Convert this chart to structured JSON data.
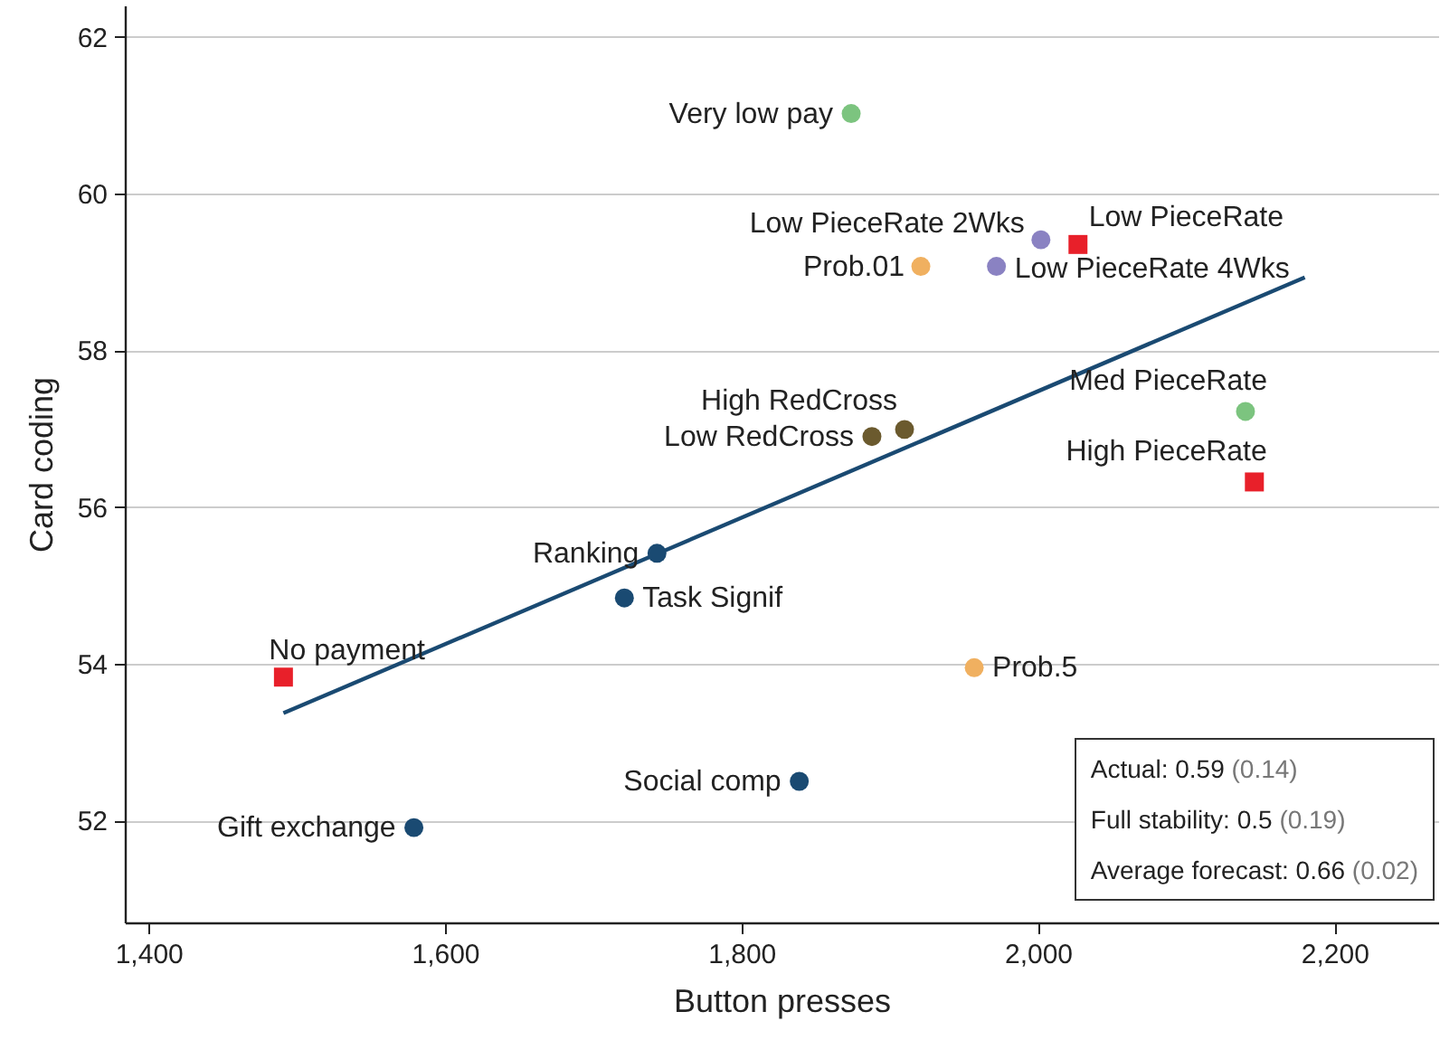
{
  "chart_data": {
    "type": "scatter",
    "xlabel": "Button presses",
    "ylabel": "Card coding",
    "xlim": [
      1384,
      2270
    ],
    "ylim": [
      50.7,
      62.4
    ],
    "xticks": [
      {
        "value": 1400,
        "label": "1,400"
      },
      {
        "value": 1600,
        "label": "1,600"
      },
      {
        "value": 1800,
        "label": "1,800"
      },
      {
        "value": 2000,
        "label": "2,000"
      },
      {
        "value": 2200,
        "label": "2,200"
      }
    ],
    "yticks": [
      52,
      54,
      56,
      58,
      60,
      62
    ],
    "grid": "y",
    "series": [
      {
        "type": "scatter",
        "marker": "square",
        "color": "#e8202a",
        "x": [
          1491,
          2027,
          2146
        ],
        "values": [
          53.83,
          59.35,
          56.32
        ]
      },
      {
        "type": "scatter",
        "marker": "circle",
        "color": "#7cc47f",
        "x": [
          1874,
          2140
        ],
        "values": [
          61.02,
          57.22
        ]
      },
      {
        "type": "scatter",
        "marker": "circle",
        "color": "#8a82c2",
        "x": [
          2002,
          1972
        ],
        "values": [
          59.41,
          59.07
        ]
      },
      {
        "type": "scatter",
        "marker": "circle",
        "color": "#f0b060",
        "x": [
          1921,
          1957
        ],
        "values": [
          59.07,
          53.95
        ]
      },
      {
        "type": "scatter",
        "marker": "circle",
        "color": "#6b5a2e",
        "x": [
          1910,
          1888
        ],
        "values": [
          56.99,
          56.9
        ]
      },
      {
        "type": "scatter",
        "marker": "circle",
        "color": "#1a4a72",
        "x": [
          1743,
          1721,
          1839,
          1579
        ],
        "values": [
          55.41,
          54.84,
          52.5,
          51.91
        ]
      },
      {
        "type": "line",
        "color": "#1a4a72",
        "x": [
          1491,
          2180
        ],
        "values": [
          53.37,
          58.93
        ]
      }
    ],
    "annotations": [
      {
        "text": "No payment",
        "x": 1491,
        "y": 53.83
      },
      {
        "text": "Low PieceRate",
        "x": 2027,
        "y": 59.35
      },
      {
        "text": "High PieceRate",
        "x": 2146,
        "y": 56.32
      },
      {
        "text": "Very low pay",
        "x": 1874,
        "y": 61.02
      },
      {
        "text": "Med PieceRate",
        "x": 2140,
        "y": 57.22
      },
      {
        "text": "Low PieceRate 2Wks",
        "x": 2002,
        "y": 59.41
      },
      {
        "text": "Low PieceRate 4Wks",
        "x": 1972,
        "y": 59.07
      },
      {
        "text": "Prob.01",
        "x": 1921,
        "y": 59.07
      },
      {
        "text": "Prob.5",
        "x": 1957,
        "y": 53.95
      },
      {
        "text": "High RedCross",
        "x": 1910,
        "y": 56.99
      },
      {
        "text": "Low RedCross",
        "x": 1888,
        "y": 56.9
      },
      {
        "text": "Ranking",
        "x": 1743,
        "y": 55.41
      },
      {
        "text": "Task Signif",
        "x": 1721,
        "y": 54.84
      },
      {
        "text": "Social comp",
        "x": 1839,
        "y": 52.5
      },
      {
        "text": "Gift exchange",
        "x": 1579,
        "y": 51.91
      },
      "Actual: 0.59 (0.14)",
      "Full stability: 0.5 (0.19)",
      "Average forecast: 0.66 (0.02)"
    ]
  }
}
